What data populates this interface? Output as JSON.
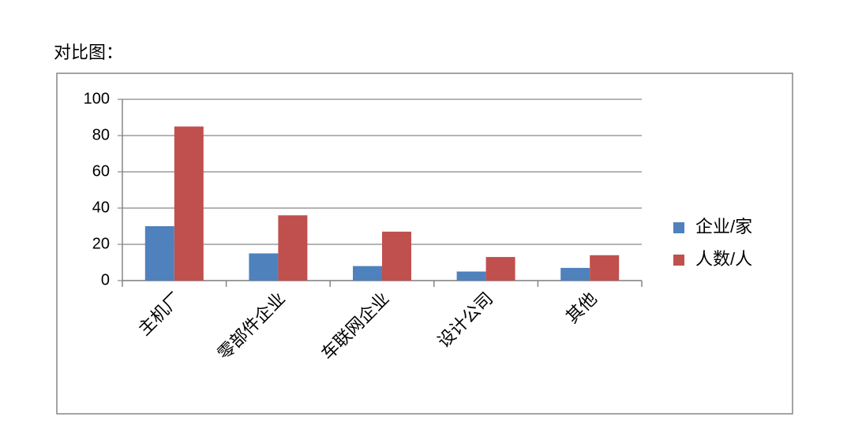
{
  "heading": "对比图：",
  "chart_data": {
    "type": "bar",
    "categories": [
      "主机厂",
      "零部件企业",
      "车联网企业",
      "设计公司",
      "其他"
    ],
    "series": [
      {
        "name": "企业/家",
        "color": "#4f81bd",
        "values": [
          30,
          15,
          8,
          5,
          7
        ]
      },
      {
        "name": "人数/人",
        "color": "#c0504d",
        "values": [
          85,
          36,
          27,
          13,
          14
        ]
      }
    ],
    "ylim": [
      0,
      100
    ],
    "yticks": [
      0,
      20,
      40,
      60,
      80,
      100
    ],
    "grid": true,
    "legend": "right"
  }
}
